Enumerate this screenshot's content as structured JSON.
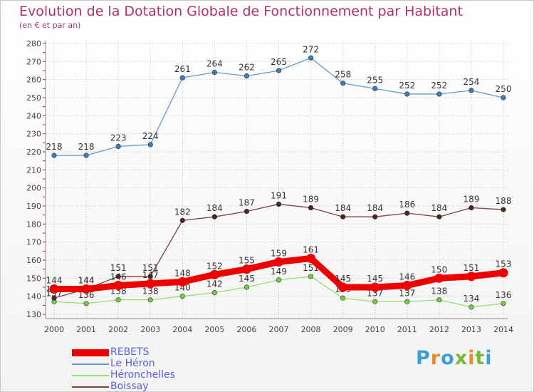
{
  "title": "Evolution de la Dotation Globale de Fonctionnement par Habitant",
  "subtitle": "(en € et par an)",
  "logo": {
    "text": "Proxiti",
    "colors": [
      "#3aa0d8",
      "#f08a1c",
      "#3aa0d8",
      "#78b83c",
      "#f08a1c",
      "#78b83c",
      "#3aa0d8"
    ]
  },
  "colors": {
    "title": "#b0306a",
    "grid": "#c8c8c8",
    "axis": "#888888",
    "tick_label": "#444444",
    "legend_text": "#5a60e0"
  },
  "chart_data": {
    "type": "line",
    "title": "Evolution de la Dotation Globale de Fonctionnement par Habitant",
    "subtitle": "(en € et par an)",
    "xlabel": "",
    "ylabel": "",
    "x": [
      "2000",
      "2001",
      "2002",
      "2003",
      "2004",
      "2005",
      "2006",
      "2007",
      "2008",
      "2009",
      "2010",
      "2011",
      "2012",
      "2013",
      "2014"
    ],
    "ylim": [
      130,
      280
    ],
    "yticks": [
      130,
      140,
      150,
      160,
      170,
      180,
      190,
      200,
      210,
      220,
      230,
      240,
      250,
      260,
      270,
      280
    ],
    "grid": true,
    "legend_position": "bottom-left",
    "series": [
      {
        "name": "REBETS",
        "color": "#ee0000",
        "style": "thick",
        "values": [
          144,
          144,
          146,
          147,
          148,
          152,
          155,
          159,
          161,
          145,
          145,
          146,
          150,
          151,
          153
        ],
        "labels": [
          "144",
          "144",
          "146",
          "147",
          "148",
          "152",
          "155",
          "159",
          "161",
          "145",
          "145",
          "146",
          "150",
          "151",
          "153"
        ]
      },
      {
        "name": "Le Héron",
        "color": "#6699cc",
        "marker": "#3a7ec0",
        "style": "thin",
        "values": [
          218,
          218,
          223,
          224,
          261,
          264,
          262,
          265,
          272,
          258,
          255,
          252,
          252,
          254,
          250
        ],
        "labels": [
          "218",
          "218",
          "223",
          "224",
          "261",
          "264",
          "262",
          "265",
          "272",
          "258",
          "255",
          "252",
          "252",
          "254",
          "250"
        ]
      },
      {
        "name": "Héronchelles",
        "color": "#99dd77",
        "marker": "#77cc44",
        "style": "thin",
        "values": [
          137,
          136,
          138,
          138,
          140,
          142,
          145,
          149,
          151,
          139,
          137,
          137,
          138,
          134,
          136
        ],
        "labels": [
          "137",
          "136",
          "138",
          "138",
          "140",
          "142",
          "145",
          "149",
          "151",
          "139",
          "137",
          "137",
          "138",
          "134",
          "136"
        ]
      },
      {
        "name": "Boissay",
        "color": "#774444",
        "marker": "#552222",
        "style": "thin",
        "values": [
          139,
          144,
          151,
          151,
          182,
          184,
          187,
          191,
          189,
          184,
          184,
          186,
          184,
          189,
          188
        ],
        "labels": [
          "139",
          "144",
          "151",
          "151",
          "182",
          "184",
          "187",
          "191",
          "189",
          "184",
          "184",
          "186",
          "184",
          "189",
          "188"
        ]
      }
    ]
  }
}
